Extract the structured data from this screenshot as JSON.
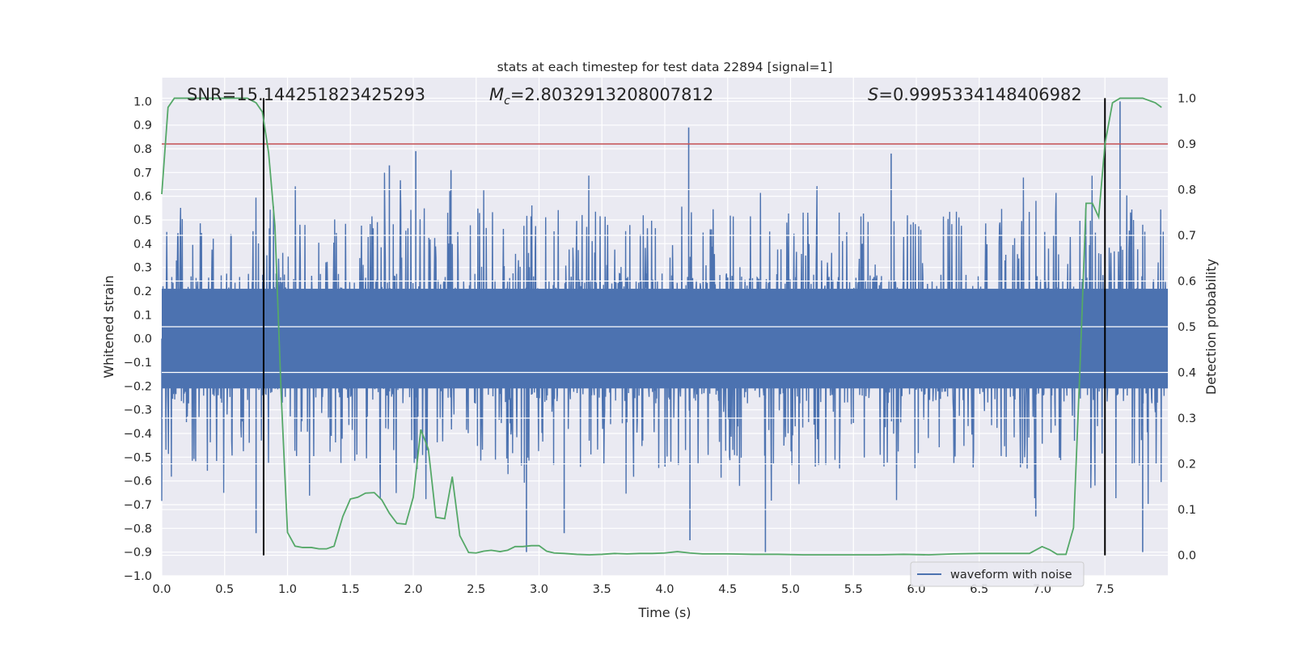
{
  "chart_data": {
    "type": "line",
    "title": "stats at each timestep for test data 22894 [signal=1]",
    "xlabel": "Time (s)",
    "ylabel": "Whitened strain",
    "y2label": "Detection probability",
    "xlim": [
      0,
      8.0
    ],
    "ylim": [
      -1.0,
      1.1
    ],
    "y2lim": [
      -0.045,
      1.045
    ],
    "xticks": [
      0.0,
      0.5,
      1.0,
      1.5,
      2.0,
      2.5,
      3.0,
      3.5,
      4.0,
      4.5,
      5.0,
      5.5,
      6.0,
      6.5,
      7.0,
      7.5
    ],
    "xtick_labels": [
      "0.0",
      "0.5",
      "1.0",
      "1.5",
      "2.0",
      "2.5",
      "3.0",
      "3.5",
      "4.0",
      "4.5",
      "5.0",
      "5.5",
      "6.0",
      "6.5",
      "7.0",
      "7.5"
    ],
    "yticks": [
      -1.0,
      -0.9,
      -0.8,
      -0.7,
      -0.6,
      -0.5,
      -0.4,
      -0.3,
      -0.2,
      -0.1,
      0.0,
      0.1,
      0.2,
      0.3,
      0.4,
      0.5,
      0.6,
      0.7,
      0.8,
      0.9,
      1.0
    ],
    "ytick_labels": [
      "−1.0",
      "−0.9",
      "−0.8",
      "−0.7",
      "−0.6",
      "−0.5",
      "−0.4",
      "−0.3",
      "−0.2",
      "−0.1",
      "0.0",
      "0.1",
      "0.2",
      "0.3",
      "0.4",
      "0.5",
      "0.6",
      "0.7",
      "0.8",
      "0.9",
      "1.0"
    ],
    "y2ticks": [
      0.0,
      0.1,
      0.2,
      0.3,
      0.4,
      0.5,
      0.6,
      0.7,
      0.8,
      0.9,
      1.0
    ],
    "y2tick_labels": [
      "0.0",
      "0.1",
      "0.2",
      "0.3",
      "0.4",
      "0.5",
      "0.6",
      "0.7",
      "0.8",
      "0.9",
      "1.0"
    ],
    "annotations": {
      "snr": "SNR=15.144251823425293",
      "mc_symbol": "M",
      "mc_sub": "c",
      "mc_value": "=2.8032913208007812",
      "s_symbol": "S",
      "s_value": "=0.9995334148406982"
    },
    "legend": {
      "label": "waveform with noise",
      "placement": "bottom-right"
    },
    "threshold": {
      "value": 0.9,
      "axis": "secondary",
      "color": "#c44e52"
    },
    "vlines": [
      {
        "x": 0.81,
        "ymin": 0.0,
        "ymax": 1.0,
        "axis": "secondary",
        "color": "#000000"
      },
      {
        "x": 7.5,
        "ymin": 0.0,
        "ymax": 1.0,
        "axis": "secondary",
        "color": "#000000"
      }
    ],
    "series": [
      {
        "name": "waveform with noise",
        "axis": "primary",
        "color": "#4c72b0",
        "style": "dense noise envelope (approx. ±0.25 core, spikes to ±0.6; peaks 0.79 at t=2.02, 0.89 at t=4.19, 0.78 at t=5.8, 1.0 at t=7.62; troughs −0.9 at t=2.9, t=4.8, t=7.8)"
      },
      {
        "name": "detection probability",
        "axis": "secondary",
        "color": "#55a868",
        "x": [
          0.0,
          0.05,
          0.1,
          0.2,
          0.3,
          0.4,
          0.5,
          0.6,
          0.68,
          0.75,
          0.8,
          0.85,
          0.9,
          0.95,
          1.0,
          1.06,
          1.12,
          1.19,
          1.25,
          1.31,
          1.37,
          1.44,
          1.5,
          1.56,
          1.62,
          1.69,
          1.75,
          1.81,
          1.87,
          1.94,
          2.0,
          2.06,
          2.12,
          2.18,
          2.25,
          2.31,
          2.37,
          2.44,
          2.5,
          2.56,
          2.62,
          2.69,
          2.75,
          2.81,
          2.87,
          2.94,
          3.0,
          3.06,
          3.12,
          3.2,
          3.3,
          3.4,
          3.5,
          3.6,
          3.7,
          3.8,
          3.9,
          4.0,
          4.1,
          4.2,
          4.3,
          4.5,
          4.7,
          4.9,
          5.1,
          5.3,
          5.5,
          5.7,
          5.9,
          6.1,
          6.3,
          6.5,
          6.7,
          6.9,
          7.0,
          7.06,
          7.12,
          7.19,
          7.25,
          7.3,
          7.35,
          7.4,
          7.45,
          7.5,
          7.56,
          7.62,
          7.7,
          7.8,
          7.9,
          7.95
        ],
        "values": [
          0.79,
          0.98,
          1.0,
          1.0,
          1.0,
          1.0,
          1.0,
          1.0,
          1.0,
          0.99,
          0.97,
          0.88,
          0.72,
          0.35,
          0.05,
          0.02,
          0.017,
          0.017,
          0.014,
          0.014,
          0.02,
          0.085,
          0.123,
          0.127,
          0.136,
          0.137,
          0.121,
          0.092,
          0.07,
          0.068,
          0.127,
          0.275,
          0.232,
          0.083,
          0.08,
          0.172,
          0.043,
          0.006,
          0.005,
          0.009,
          0.011,
          0.008,
          0.011,
          0.019,
          0.019,
          0.021,
          0.021,
          0.009,
          0.005,
          0.004,
          0.002,
          0.001,
          0.002,
          0.004,
          0.003,
          0.004,
          0.004,
          0.005,
          0.008,
          0.005,
          0.003,
          0.003,
          0.002,
          0.002,
          0.001,
          0.001,
          0.001,
          0.001,
          0.002,
          0.001,
          0.003,
          0.004,
          0.004,
          0.004,
          0.019,
          0.012,
          0.002,
          0.002,
          0.06,
          0.4,
          0.77,
          0.77,
          0.74,
          0.9,
          0.99,
          1.0,
          1.0,
          1.0,
          0.99,
          0.98
        ]
      }
    ]
  }
}
